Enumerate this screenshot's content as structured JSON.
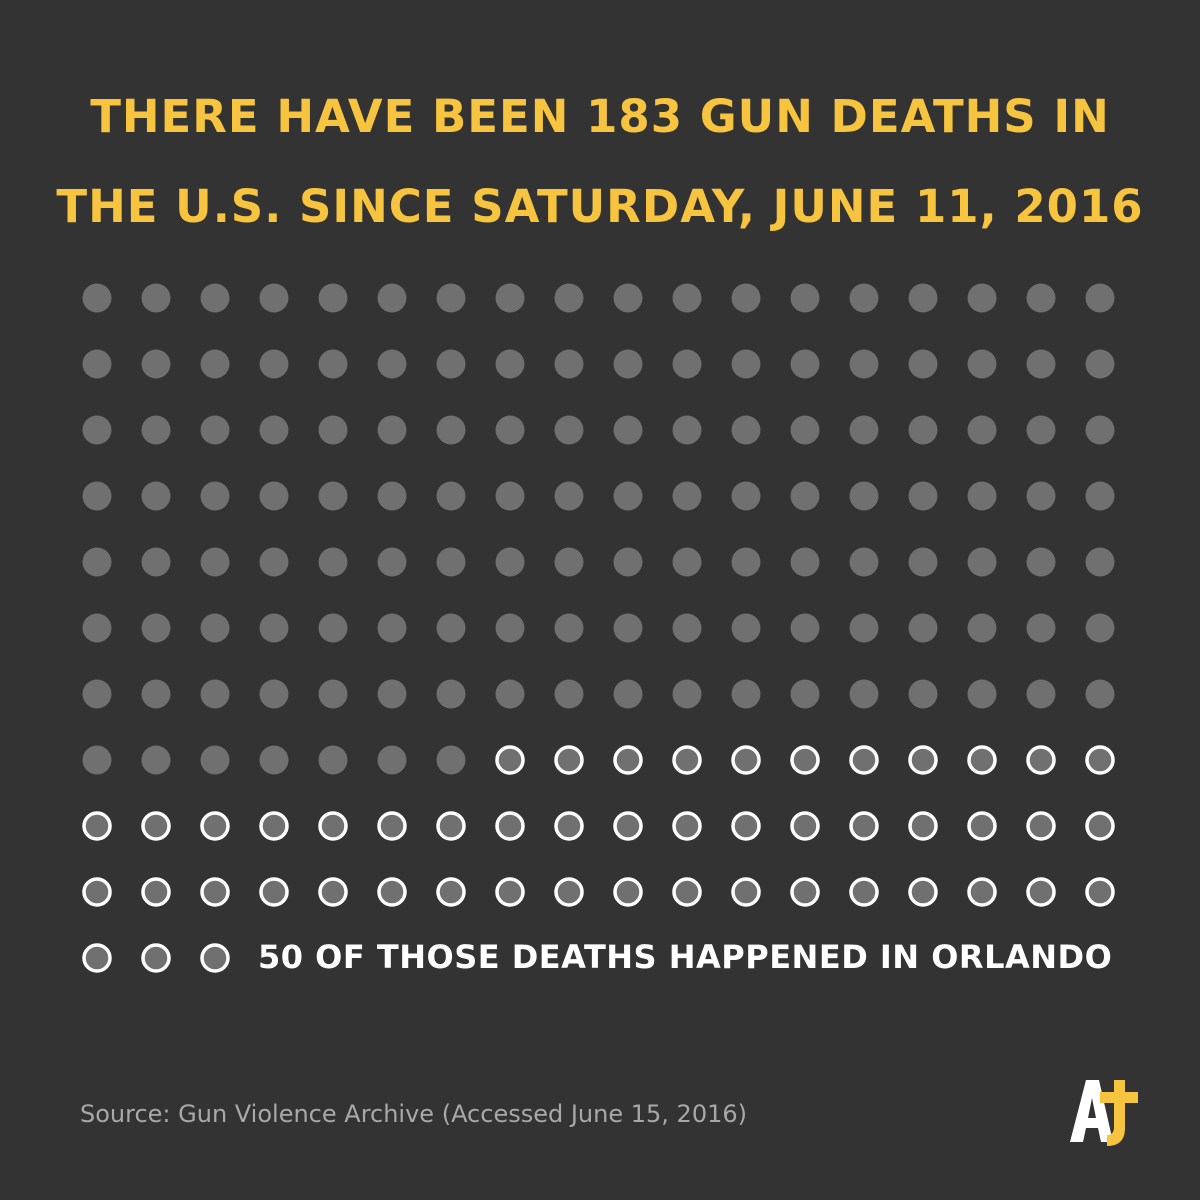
{
  "headline": {
    "line1": "THERE HAVE BEEN 183 GUN DEATHS IN",
    "line2": "THE U.S. SINCE SATURDAY, JUNE 11, 2016"
  },
  "annotation": "50 OF THOSE DEATHS HAPPENED IN ORLANDO",
  "source": "Source: Gun Violence Archive (Accessed June 15, 2016)",
  "logo": {
    "name": "aj-plus-logo",
    "text": "AJ+"
  },
  "colors": {
    "background": "#333333",
    "headline": "#F6C43E",
    "dot_fill": "#707070",
    "highlight_ring": "#FFFFFF",
    "annotation": "#FFFFFF",
    "source": "#A8A8A8",
    "logo_white": "#FFFFFF",
    "logo_yellow": "#F6C43E"
  },
  "chart_data": {
    "type": "waffle",
    "total": 183,
    "series": [
      {
        "name": "Other U.S. gun deaths",
        "values": [
          133
        ]
      },
      {
        "name": "Orlando",
        "values": [
          50
        ]
      }
    ],
    "columns": 18,
    "order": [
      "Other U.S. gun deaths",
      "Orlando"
    ]
  }
}
